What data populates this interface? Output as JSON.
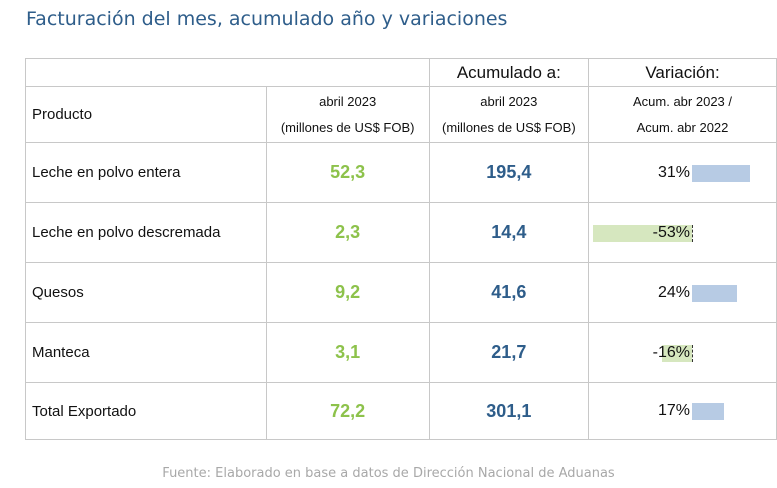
{
  "title": "Facturación del mes, acumulado año y variaciones",
  "header": {
    "acumulado": "Acumulado a:",
    "variacion": "Variación:",
    "producto": "Producto",
    "mes_line1": "abril 2023",
    "mes_line2": "(millones de US$ FOB)",
    "acum_line1": "abril 2023",
    "acum_line2": "(millones de US$ FOB)",
    "var_line1": "Acum. abr 2023 /",
    "var_line2": "Acum. abr 2022"
  },
  "rows": [
    {
      "producto": "Leche en polvo entera",
      "mes": "52,3",
      "acumulado": "195,4",
      "variacion": "31%",
      "variacion_value": 31
    },
    {
      "producto": "Leche en polvo descremada",
      "mes": "2,3",
      "acumulado": "14,4",
      "variacion": "-53%",
      "variacion_value": -53
    },
    {
      "producto": "Quesos",
      "mes": "9,2",
      "acumulado": "41,6",
      "variacion": "24%",
      "variacion_value": 24
    },
    {
      "producto": "Manteca",
      "mes": "3,1",
      "acumulado": "21,7",
      "variacion": "-16%",
      "variacion_value": -16
    },
    {
      "producto": "Total Exportado",
      "mes": "72,2",
      "acumulado": "301,1",
      "variacion": "17%",
      "variacion_value": 17
    }
  ],
  "colors": {
    "mes_value": "#8dc24b",
    "acumulado_value": "#2e5d8a",
    "positive_bar": "#b7cbe4",
    "negative_bar": "#d6e7bf"
  },
  "source": "Fuente: Elaborado en base a datos de Dirección Nacional de Aduanas"
}
